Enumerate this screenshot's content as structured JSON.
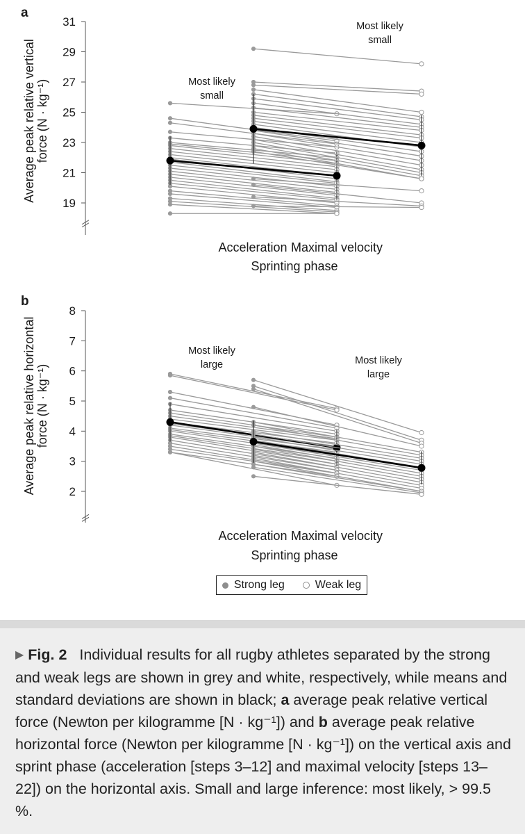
{
  "chart_data": [
    {
      "type": "line",
      "panel_label": "a",
      "ylabel": "Average peak relative vertical force (N · kg⁻¹)",
      "ylabel_line1": "Average peak relative vertical",
      "ylabel_line2": "force (N · kg⁻¹)",
      "xlabel": "Sprinting phase",
      "categories": [
        "Acceleration",
        "Maximal velocity"
      ],
      "ylim": [
        18,
        31
      ],
      "yticks": [
        19,
        21,
        23,
        25,
        27,
        29,
        31
      ],
      "axis_break": true,
      "groups": [
        {
          "name": "Acceleration",
          "annotation": [
            "Most likely",
            "small"
          ],
          "strong_leg": [
            25.6,
            24.6,
            24.3,
            23.7,
            23.3,
            23.0,
            22.9,
            22.8,
            22.6,
            22.4,
            22.2,
            22.0,
            21.9,
            21.7,
            21.5,
            21.3,
            21.1,
            20.9,
            20.7,
            20.5,
            20.3,
            20.1,
            19.8,
            19.6,
            19.3,
            19.1,
            18.9,
            18.3
          ],
          "weak_leg": [
            24.9,
            23.1,
            22.9,
            22.7,
            22.3,
            22.0,
            21.8,
            21.6,
            21.4,
            21.2,
            21.0,
            20.8,
            20.6,
            20.4,
            20.3,
            20.1,
            19.9,
            19.7,
            19.5,
            19.3,
            19.2,
            19.0,
            18.8,
            18.7,
            18.5,
            18.4,
            18.3,
            18.3
          ],
          "mean_strong": 21.8,
          "mean_weak": 20.8,
          "sd_strong": 1.6,
          "sd_weak": 1.6
        },
        {
          "name": "Maximal velocity",
          "annotation": [
            "Most likely",
            "small"
          ],
          "strong_leg": [
            29.2,
            27.0,
            26.8,
            26.5,
            26.2,
            25.9,
            25.6,
            25.3,
            25.0,
            24.8,
            24.6,
            24.4,
            24.2,
            24.0,
            23.8,
            23.6,
            23.4,
            23.2,
            23.0,
            22.8,
            22.6,
            22.4,
            20.6,
            20.2,
            19.4,
            18.8
          ],
          "weak_leg": [
            28.2,
            26.4,
            26.2,
            25.0,
            24.7,
            24.5,
            24.2,
            24.0,
            23.8,
            23.5,
            23.3,
            23.0,
            22.7,
            22.4,
            22.1,
            21.8,
            21.5,
            21.2,
            21.0,
            20.8,
            20.6,
            20.6,
            19.8,
            19.0,
            18.8,
            18.7
          ],
          "mean_strong": 23.9,
          "mean_weak": 22.8,
          "sd_strong": 2.3,
          "sd_weak": 2.0
        }
      ]
    },
    {
      "type": "line",
      "panel_label": "b",
      "ylabel": "Average peak relative horizontal force (N · kg⁻¹)",
      "ylabel_line1": "Average peak relative horizontal",
      "ylabel_line2": "force (N · kg⁻¹)",
      "xlabel": "Sprinting phase",
      "categories": [
        "Acceleration",
        "Maximal velocity"
      ],
      "ylim": [
        1.3,
        8
      ],
      "yticks": [
        2,
        3,
        4,
        5,
        6,
        7,
        8
      ],
      "axis_break": true,
      "groups": [
        {
          "name": "Acceleration",
          "annotation": [
            "Most likely",
            "large"
          ],
          "strong_leg": [
            5.9,
            5.85,
            5.3,
            5.1,
            4.9,
            4.7,
            4.6,
            4.5,
            4.4,
            4.3,
            4.25,
            4.2,
            4.1,
            4.05,
            4.0,
            3.9,
            3.85,
            3.8,
            3.7,
            3.6,
            3.5,
            3.4,
            3.3,
            3.3
          ],
          "weak_leg": [
            4.75,
            4.7,
            4.2,
            4.1,
            4.0,
            3.9,
            3.8,
            3.75,
            3.7,
            3.6,
            3.5,
            3.45,
            3.4,
            3.3,
            3.2,
            3.1,
            3.0,
            2.9,
            2.8,
            2.7,
            2.6,
            2.6,
            2.5,
            2.2
          ],
          "mean_strong": 4.3,
          "mean_weak": 3.45,
          "sd_strong": 0.65,
          "sd_weak": 0.6
        },
        {
          "name": "Maximal velocity",
          "annotation": [
            "Most likely",
            "large"
          ],
          "strong_leg": [
            5.7,
            5.5,
            5.4,
            4.8,
            4.3,
            4.2,
            4.0,
            3.9,
            3.8,
            3.7,
            3.6,
            3.55,
            3.5,
            3.4,
            3.3,
            3.2,
            3.1,
            3.0,
            2.9,
            2.8,
            2.5
          ],
          "weak_leg": [
            3.95,
            3.7,
            3.6,
            3.5,
            3.3,
            3.2,
            3.1,
            3.0,
            2.9,
            2.8,
            2.7,
            2.6,
            2.5,
            2.4,
            2.3,
            2.2,
            2.1,
            2.0,
            2.0,
            1.95,
            1.9
          ],
          "mean_strong": 3.65,
          "mean_weak": 2.78,
          "sd_strong": 0.7,
          "sd_weak": 0.55
        }
      ]
    }
  ],
  "legend": {
    "strong": "Strong leg",
    "weak": "Weak leg"
  },
  "caption": {
    "marker": "▶",
    "fig_label": "Fig. 2",
    "part1": "Individual results for all rugby athletes separated by the strong and weak legs are shown in grey and white, respectively, while means and standard deviations are shown in black;",
    "label_a": "a",
    "part2": "average peak relative vertical force (Newton per kilogramme [N · kg⁻¹]) and",
    "label_b": "b",
    "part3": "average peak relative horizontal force (Newton per kilogramme [N · kg⁻¹]) on the vertical axis and sprint phase (acceleration [steps 3–12] and maximal velocity [steps 13–22]) on the horizontal axis. Small and large inference: most likely, > 99.5 %."
  },
  "colors": {
    "grey": "#9a9a9a",
    "mean": "#000000",
    "caption_bg": "#eeeeee"
  }
}
